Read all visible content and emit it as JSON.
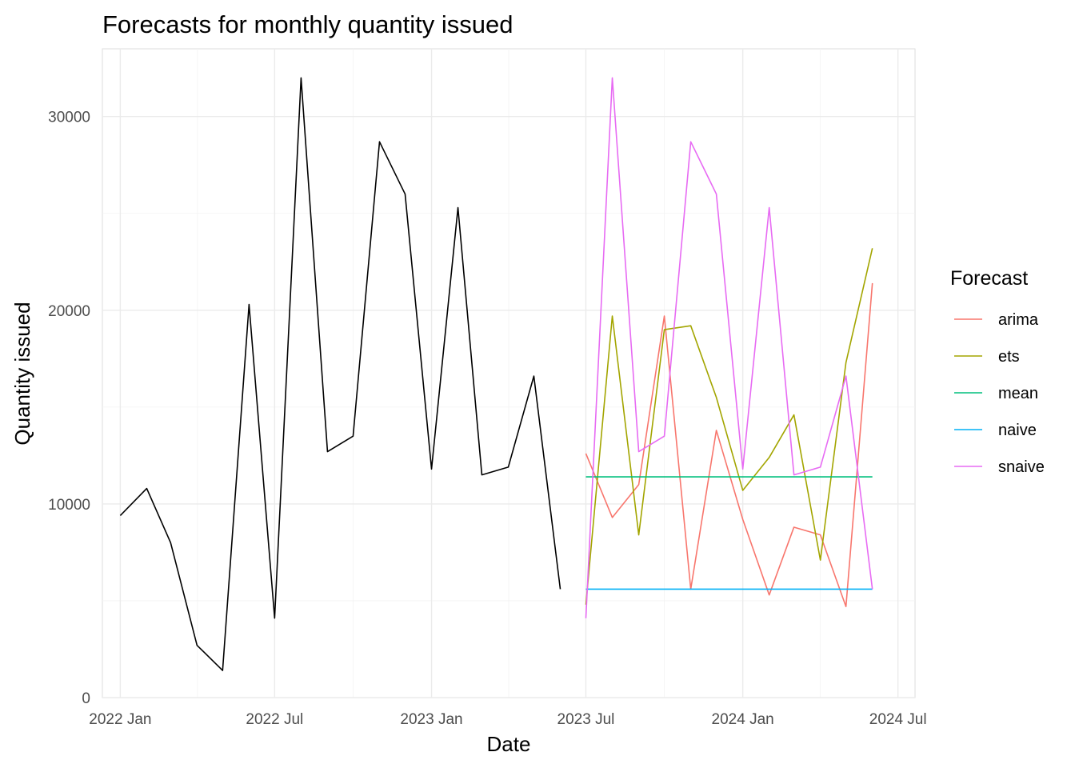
{
  "chart_data": {
    "type": "line",
    "title": "Forecasts for monthly quantity issued",
    "xlabel": "Date",
    "ylabel": "Quantity issued",
    "xlim": [
      "2021-12-11",
      "2024-07-21"
    ],
    "ylim": [
      0,
      33500
    ],
    "x_ticks": [
      {
        "date": "2022-01-01",
        "label": "2022 Jan"
      },
      {
        "date": "2022-07-01",
        "label": "2022 Jul"
      },
      {
        "date": "2023-01-01",
        "label": "2023 Jan"
      },
      {
        "date": "2023-07-01",
        "label": "2023 Jul"
      },
      {
        "date": "2024-01-01",
        "label": "2024 Jan"
      },
      {
        "date": "2024-07-01",
        "label": "2024 Jul"
      }
    ],
    "y_ticks": [
      {
        "value": 0,
        "label": "0"
      },
      {
        "value": 10000,
        "label": "10000"
      },
      {
        "value": 20000,
        "label": "20000"
      },
      {
        "value": 30000,
        "label": "30000"
      }
    ],
    "grid": true,
    "legend": {
      "title": "Forecast",
      "position": "right"
    },
    "history": {
      "color": "#000000",
      "points": [
        {
          "x": "2022-01-01",
          "y": 9400
        },
        {
          "x": "2022-02-01",
          "y": 10800
        },
        {
          "x": "2022-03-01",
          "y": 8000
        },
        {
          "x": "2022-04-01",
          "y": 2700
        },
        {
          "x": "2022-05-01",
          "y": 1400
        },
        {
          "x": "2022-06-01",
          "y": 20300
        },
        {
          "x": "2022-07-01",
          "y": 4100
        },
        {
          "x": "2022-08-01",
          "y": 32000
        },
        {
          "x": "2022-09-01",
          "y": 12700
        },
        {
          "x": "2022-10-01",
          "y": 13500
        },
        {
          "x": "2022-11-01",
          "y": 28700
        },
        {
          "x": "2022-12-01",
          "y": 26000
        },
        {
          "x": "2023-01-01",
          "y": 11800
        },
        {
          "x": "2023-02-01",
          "y": 25300
        },
        {
          "x": "2023-03-01",
          "y": 11500
        },
        {
          "x": "2023-04-01",
          "y": 11900
        },
        {
          "x": "2023-05-01",
          "y": 16600
        },
        {
          "x": "2023-06-01",
          "y": 5600
        }
      ]
    },
    "forecast_x": [
      "2023-07-01",
      "2023-08-01",
      "2023-09-01",
      "2023-10-01",
      "2023-11-01",
      "2023-12-01",
      "2024-01-01",
      "2024-02-01",
      "2024-03-01",
      "2024-04-01",
      "2024-05-01",
      "2024-06-01"
    ],
    "series": [
      {
        "name": "arima",
        "color": "#F8766D",
        "values": [
          12600,
          9300,
          11000,
          19700,
          5600,
          13800,
          9200,
          5300,
          8800,
          8400,
          4700,
          21400
        ]
      },
      {
        "name": "ets",
        "color": "#A3A500",
        "values": [
          4800,
          19700,
          8400,
          19000,
          19200,
          15500,
          10700,
          12400,
          14600,
          7100,
          17300,
          23200
        ]
      },
      {
        "name": "mean",
        "color": "#00BF7D",
        "values": [
          11400,
          11400,
          11400,
          11400,
          11400,
          11400,
          11400,
          11400,
          11400,
          11400,
          11400,
          11400
        ]
      },
      {
        "name": "naive",
        "color": "#00B0F6",
        "values": [
          5600,
          5600,
          5600,
          5600,
          5600,
          5600,
          5600,
          5600,
          5600,
          5600,
          5600,
          5600
        ]
      },
      {
        "name": "snaive",
        "color": "#E76BF3",
        "values": [
          4100,
          32000,
          12700,
          13500,
          28700,
          26000,
          11800,
          25300,
          11500,
          11900,
          16600,
          5600
        ]
      }
    ]
  }
}
